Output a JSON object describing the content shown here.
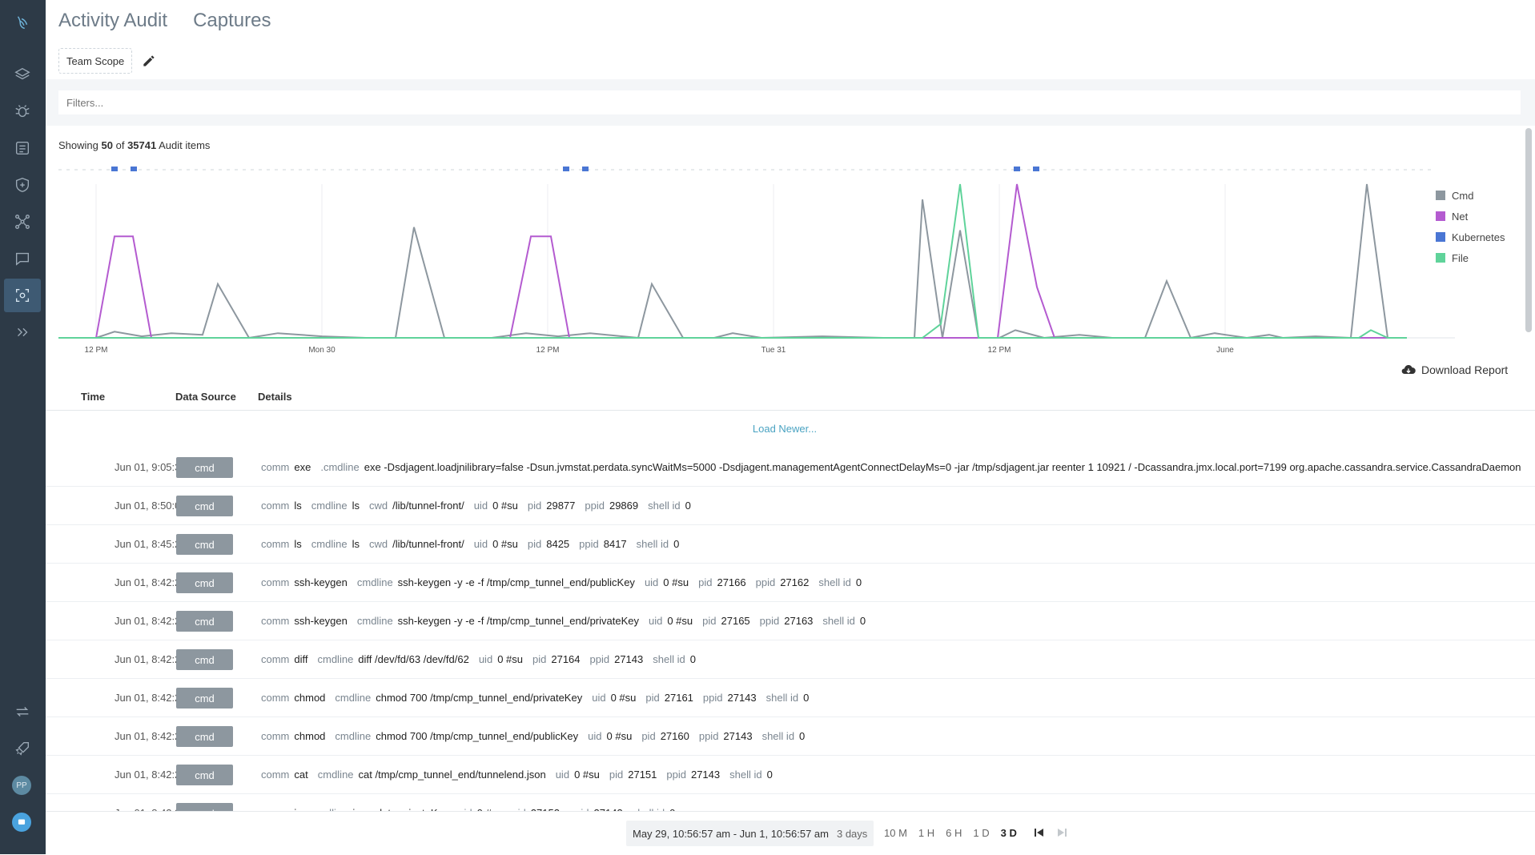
{
  "nav": {
    "icons": [
      "logo-icon",
      "layers-icon",
      "bug-icon",
      "report-icon",
      "shield-icon",
      "network-icon",
      "chat-icon",
      "capture-icon",
      "expand-icon",
      "sync-icon",
      "rocket-icon"
    ],
    "avatar_initials": "PP"
  },
  "header": {
    "tabs": [
      {
        "label": "Activity Audit"
      },
      {
        "label": "Captures"
      }
    ],
    "scope_label": "Team Scope"
  },
  "filters": {
    "placeholder": "Filters..."
  },
  "summary": {
    "prefix": "Showing",
    "shown": "50",
    "of": "of",
    "total": "35741",
    "suffix": "Audit items"
  },
  "chart_data": {
    "type": "line",
    "x_tick_labels": [
      "12 PM",
      "Mon 30",
      "12 PM",
      "Tue 31",
      "12 PM",
      "June"
    ],
    "series": [
      {
        "name": "Cmd",
        "color": "#8d979f",
        "values": [
          0,
          0,
          4,
          2,
          0,
          4,
          0,
          0,
          0,
          0,
          0,
          0,
          0,
          0,
          0,
          0,
          0,
          0,
          0,
          0,
          0,
          0,
          0,
          2,
          4,
          0,
          0,
          0,
          0,
          0,
          0,
          8,
          0,
          0,
          0,
          0,
          0,
          0,
          0,
          0,
          0,
          0,
          0,
          0,
          0,
          0,
          0,
          0,
          0,
          0,
          0,
          0,
          2,
          0,
          0,
          0,
          0,
          0,
          0,
          0,
          0,
          0,
          0,
          0,
          0,
          0,
          0,
          0,
          0,
          0,
          0,
          0,
          0,
          0,
          0,
          0,
          0,
          0,
          0,
          0,
          0,
          0,
          0,
          0,
          0,
          0,
          0,
          0,
          0,
          0,
          0,
          0,
          0,
          0,
          0,
          0,
          0,
          0,
          0,
          0,
          0,
          0
        ]
      },
      {
        "name": "Net",
        "color": "#b45bd0",
        "values": []
      },
      {
        "name": "Kubernetes",
        "color": "#4a76d4",
        "values": []
      },
      {
        "name": "File",
        "color": "#5fd39a",
        "values": []
      }
    ]
  },
  "legend": [
    {
      "label": "Cmd",
      "color": "#8d979f"
    },
    {
      "label": "Net",
      "color": "#b45bd0"
    },
    {
      "label": "Kubernetes",
      "color": "#4a76d4"
    },
    {
      "label": "File",
      "color": "#5fd39a"
    }
  ],
  "download_label": "Download Report",
  "table": {
    "headers": {
      "time": "Time",
      "source": "Data Source",
      "details": "Details"
    },
    "load_newer": "Load Newer...",
    "rows": [
      {
        "time": "Jun 01, 9:05:34 AM",
        "source": "cmd",
        "fields": [
          [
            "comm",
            "exe"
          ],
          [
            ".cmdline",
            "exe -Dsdjagent.loadjnilibrary=false -Dsun.jvmstat.perdata.syncWaitMs=5000 -Dsdjagent.managementAgentConnectDelayMs=0 -jar /tmp/sdjagent.jar reenter 1 10921 / -Dcassandra.jmx.local.port=7199 org.apache.cassandra.service.CassandraDaemon"
          ]
        ]
      },
      {
        "time": "Jun 01, 8:50:03 AM",
        "source": "cmd",
        "fields": [
          [
            "comm",
            "ls"
          ],
          [
            "cmdline",
            "ls"
          ],
          [
            "cwd",
            "/lib/tunnel-front/"
          ],
          [
            "uid",
            "0 #su"
          ],
          [
            "pid",
            "29877"
          ],
          [
            "ppid",
            "29869"
          ],
          [
            "shell id",
            "0"
          ]
        ]
      },
      {
        "time": "Jun 01, 8:45:24 AM",
        "source": "cmd",
        "fields": [
          [
            "comm",
            "ls"
          ],
          [
            "cmdline",
            "ls"
          ],
          [
            "cwd",
            "/lib/tunnel-front/"
          ],
          [
            "uid",
            "0 #su"
          ],
          [
            "pid",
            "8425"
          ],
          [
            "ppid",
            "8417"
          ],
          [
            "shell id",
            "0"
          ]
        ]
      },
      {
        "time": "Jun 01, 8:42:23 AM",
        "source": "cmd",
        "fields": [
          [
            "comm",
            "ssh-keygen"
          ],
          [
            "cmdline",
            "ssh-keygen -y -e -f /tmp/cmp_tunnel_end/publicKey"
          ],
          [
            "uid",
            "0 #su"
          ],
          [
            "pid",
            "27166"
          ],
          [
            "ppid",
            "27162"
          ],
          [
            "shell id",
            "0"
          ]
        ]
      },
      {
        "time": "Jun 01, 8:42:23 AM",
        "source": "cmd",
        "fields": [
          [
            "comm",
            "ssh-keygen"
          ],
          [
            "cmdline",
            "ssh-keygen -y -e -f /tmp/cmp_tunnel_end/privateKey"
          ],
          [
            "uid",
            "0 #su"
          ],
          [
            "pid",
            "27165"
          ],
          [
            "ppid",
            "27163"
          ],
          [
            "shell id",
            "0"
          ]
        ]
      },
      {
        "time": "Jun 01, 8:42:23 AM",
        "source": "cmd",
        "fields": [
          [
            "comm",
            "diff"
          ],
          [
            "cmdline",
            "diff /dev/fd/63 /dev/fd/62"
          ],
          [
            "uid",
            "0 #su"
          ],
          [
            "pid",
            "27164"
          ],
          [
            "ppid",
            "27143"
          ],
          [
            "shell id",
            "0"
          ]
        ]
      },
      {
        "time": "Jun 01, 8:42:23 AM",
        "source": "cmd",
        "fields": [
          [
            "comm",
            "chmod"
          ],
          [
            "cmdline",
            "chmod 700 /tmp/cmp_tunnel_end/privateKey"
          ],
          [
            "uid",
            "0 #su"
          ],
          [
            "pid",
            "27161"
          ],
          [
            "ppid",
            "27143"
          ],
          [
            "shell id",
            "0"
          ]
        ]
      },
      {
        "time": "Jun 01, 8:42:23 AM",
        "source": "cmd",
        "fields": [
          [
            "comm",
            "chmod"
          ],
          [
            "cmdline",
            "chmod 700 /tmp/cmp_tunnel_end/publicKey"
          ],
          [
            "uid",
            "0 #su"
          ],
          [
            "pid",
            "27160"
          ],
          [
            "ppid",
            "27143"
          ],
          [
            "shell id",
            "0"
          ]
        ]
      },
      {
        "time": "Jun 01, 8:42:23 AM",
        "source": "cmd",
        "fields": [
          [
            "comm",
            "cat"
          ],
          [
            "cmdline",
            "cat /tmp/cmp_tunnel_end/tunnelend.json"
          ],
          [
            "uid",
            "0 #su"
          ],
          [
            "pid",
            "27151"
          ],
          [
            "ppid",
            "27143"
          ],
          [
            "shell id",
            "0"
          ]
        ]
      },
      {
        "time": "Jun 01, 8:42:23 AM",
        "source": "cmd",
        "fields": [
          [
            "comm",
            "jq"
          ],
          [
            "cmdline",
            "jq -r .data.privateKey"
          ],
          [
            "uid",
            "0 #su"
          ],
          [
            "pid",
            "27152"
          ],
          [
            "ppid",
            "27143"
          ],
          [
            "shell id",
            "0"
          ]
        ]
      }
    ]
  },
  "footer": {
    "range": "May 29, 10:56:57 am - Jun 1, 10:56:57 am",
    "duration": "3 days",
    "zoom_options": [
      "10 M",
      "1 H",
      "6 H",
      "1 D",
      "3 D"
    ],
    "zoom_active": "3 D"
  }
}
